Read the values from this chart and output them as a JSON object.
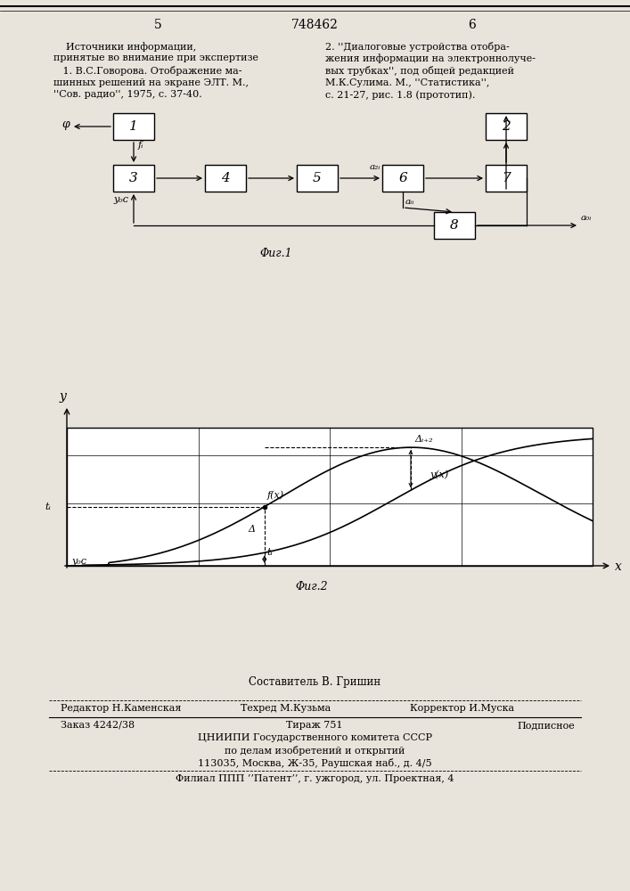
{
  "page_number_left": "5",
  "page_number_center": "748462",
  "page_number_right": "6",
  "bg_color": "#e8e4dc",
  "fig1_caption": "Φиг.1",
  "fig2_caption": "Φиг.2",
  "footer_compositor": "Составитель В. Гришин",
  "footer_editor": "Редактор Н.Каменская",
  "footer_techred": "Техред М.Кузьма",
  "footer_corrector": "Корректор И.Муска",
  "footer_order": "Заказ 4242/38",
  "footer_tirazh": "Тираж 751",
  "footer_podpisnoe": "Подписное",
  "footer_tsniip": "ЦНИИПИ Государственного комитета СССР",
  "footer_dela": "по делам изобретений и открытий",
  "footer_address": "113035, Москва, Ж-35, Раушская наб., д. 4/5",
  "footer_filial": "Филиал ППП ’’Патент’’, г. ужгород, ул. Проектная, 4"
}
